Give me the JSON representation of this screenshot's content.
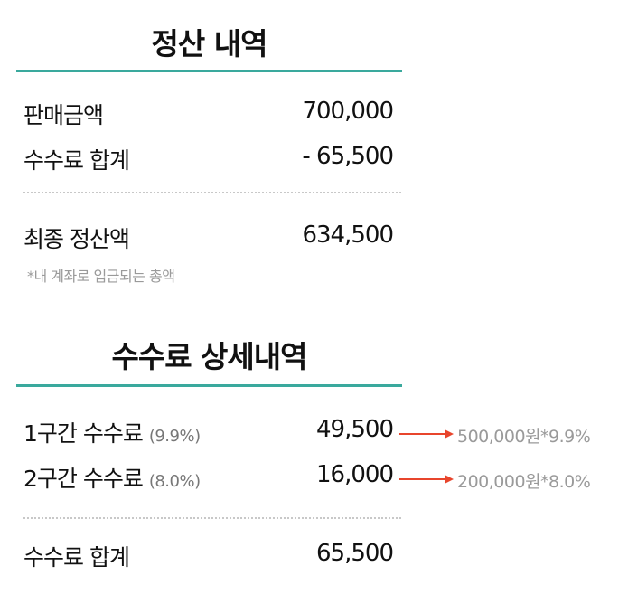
{
  "summary": {
    "title": "정산 내역",
    "sales_label": "판매금액",
    "sales_value": "700,000",
    "fee_label": "수수료 합계",
    "fee_value": "- 65,500",
    "final_label": "최종 정산액",
    "final_value": "634,500",
    "final_note": "*내 계좌로 입금되는 총액"
  },
  "fee_detail": {
    "title": "수수료 상세내역",
    "rows": [
      {
        "label": "1구간 수수료",
        "rate": "(9.9%)",
        "value": "49,500",
        "calc": "500,000원*9.9%"
      },
      {
        "label": "2구간 수수료",
        "rate": "(8.0%)",
        "value": "16,000",
        "calc": "200,000원*8.0%"
      }
    ],
    "total_label": "수수료 합계",
    "total_value": "65,500"
  },
  "colors": {
    "accent": "#3aa99d",
    "arrow": "#e8452c"
  }
}
